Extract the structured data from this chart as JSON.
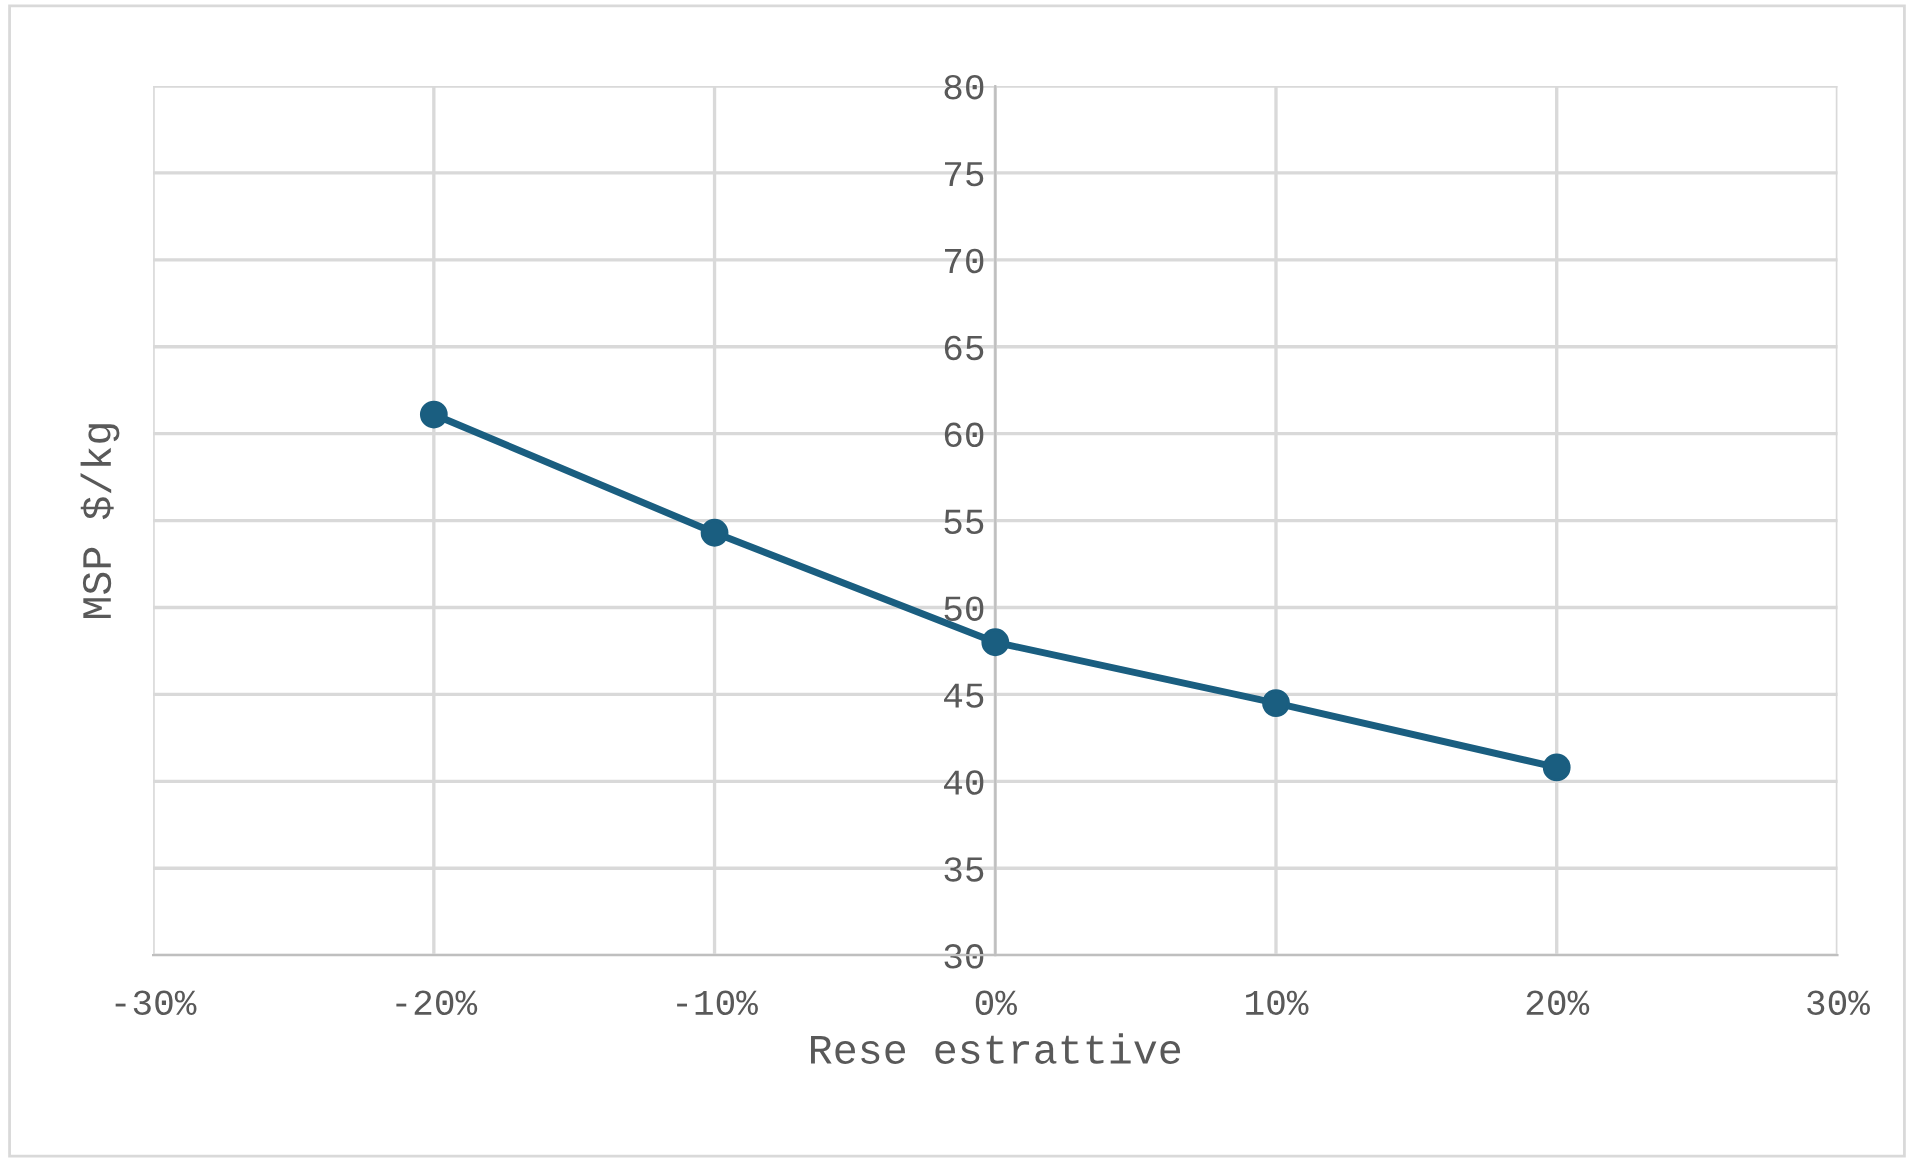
{
  "chart_data": {
    "type": "line",
    "xlabel": "Rese estrattive",
    "ylabel": "MSP $/kg",
    "x": [
      -20,
      -10,
      0,
      10,
      20
    ],
    "series": [
      {
        "color": "#1a5e80",
        "values": [
          61.1,
          54.3,
          48.0,
          44.5,
          40.8
        ]
      }
    ],
    "xlim": [
      -30,
      30
    ],
    "ylim": [
      30,
      80
    ],
    "xticks": [
      {
        "value": -30,
        "label": "-30%"
      },
      {
        "value": -20,
        "label": "-20%"
      },
      {
        "value": -10,
        "label": "-10%"
      },
      {
        "value": 0,
        "label": "0%"
      },
      {
        "value": 10,
        "label": "10%"
      },
      {
        "value": 20,
        "label": "20%"
      },
      {
        "value": 30,
        "label": "30%"
      }
    ],
    "yticks": [
      30,
      35,
      40,
      45,
      50,
      55,
      60,
      65,
      70,
      75,
      80
    ],
    "grid": true,
    "marker": "circle",
    "line_style": "solid",
    "legend": false
  }
}
